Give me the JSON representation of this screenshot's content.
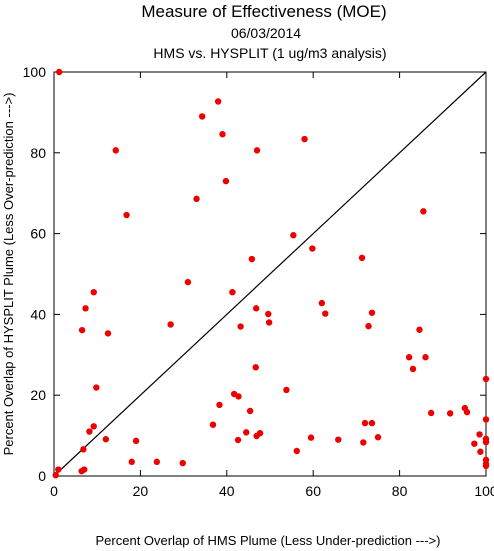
{
  "chart_data": {
    "type": "scatter",
    "title": "Measure of Effectiveness (MOE)",
    "subtitle_date": "06/03/2014",
    "subtitle_analysis": "HMS vs. HYSPLIT  (1 ug/m3 analysis)",
    "xlabel": "Percent Overlap of HMS Plume (Less Under-prediction --->)",
    "ylabel": "Percent Overlap of HYSPLIT Plume (Less Over-prediction --->)",
    "xlim": [
      0,
      100
    ],
    "ylim": [
      0,
      100
    ],
    "xticks": [
      0,
      20,
      40,
      60,
      80,
      100
    ],
    "yticks": [
      0,
      20,
      40,
      60,
      80,
      100
    ],
    "reference_line": [
      [
        0,
        0
      ],
      [
        100,
        100
      ]
    ],
    "point_color": "#ee0000",
    "points": [
      [
        1.2,
        100
      ],
      [
        38,
        92.7
      ],
      [
        34.3,
        89
      ],
      [
        39,
        84.6
      ],
      [
        58,
        83.4
      ],
      [
        14.3,
        80.6
      ],
      [
        47,
        80.6
      ],
      [
        39.8,
        73
      ],
      [
        33,
        68.6
      ],
      [
        85.5,
        65.5
      ],
      [
        16.8,
        64.6
      ],
      [
        55.4,
        59.6
      ],
      [
        59.8,
        56.3
      ],
      [
        45.8,
        53.7
      ],
      [
        71.3,
        54
      ],
      [
        31,
        48
      ],
      [
        9.2,
        45.5
      ],
      [
        41.3,
        45.5
      ],
      [
        62,
        42.8
      ],
      [
        7.3,
        41.5
      ],
      [
        46.8,
        41.5
      ],
      [
        49.6,
        40.1
      ],
      [
        62.8,
        40.2
      ],
      [
        73.6,
        40.4
      ],
      [
        49.8,
        38
      ],
      [
        27,
        37.5
      ],
      [
        43.2,
        37
      ],
      [
        72.8,
        37.1
      ],
      [
        6.5,
        36.1
      ],
      [
        12.5,
        35.3
      ],
      [
        84.6,
        36.2
      ],
      [
        82.2,
        29.4
      ],
      [
        86,
        29.4
      ],
      [
        46.7,
        26.9
      ],
      [
        83.1,
        26.5
      ],
      [
        9.8,
        21.9
      ],
      [
        53.8,
        21.3
      ],
      [
        41.7,
        20.3
      ],
      [
        42.7,
        19.7
      ],
      [
        38.3,
        17.6
      ],
      [
        45.4,
        16.1
      ],
      [
        95.1,
        16.8
      ],
      [
        87.3,
        15.6
      ],
      [
        91.7,
        15.5
      ],
      [
        95.6,
        15.8
      ],
      [
        100,
        24
      ],
      [
        100,
        14
      ],
      [
        72,
        13.1
      ],
      [
        73.6,
        13.1
      ],
      [
        36.8,
        12.7
      ],
      [
        9.2,
        12.3
      ],
      [
        8.2,
        11
      ],
      [
        44.5,
        10.8
      ],
      [
        47.7,
        10.6
      ],
      [
        46.9,
        9.9
      ],
      [
        59.5,
        9.5
      ],
      [
        75,
        9.6
      ],
      [
        98.5,
        10.3
      ],
      [
        12,
        9.1
      ],
      [
        42.6,
        8.9
      ],
      [
        65.8,
        9
      ],
      [
        71.6,
        8.3
      ],
      [
        97.3,
        8
      ],
      [
        100,
        9.2
      ],
      [
        100,
        8.4
      ],
      [
        19,
        8.7
      ],
      [
        6.8,
        6.6
      ],
      [
        56.2,
        6.2
      ],
      [
        98.7,
        6
      ],
      [
        100,
        4
      ],
      [
        100,
        3
      ],
      [
        100,
        2.5
      ],
      [
        18,
        3.5
      ],
      [
        23.8,
        3.5
      ],
      [
        29.8,
        3.2
      ],
      [
        7,
        1.6
      ],
      [
        6.4,
        1.2
      ],
      [
        1,
        1.6
      ],
      [
        0.4,
        0.2
      ]
    ]
  }
}
